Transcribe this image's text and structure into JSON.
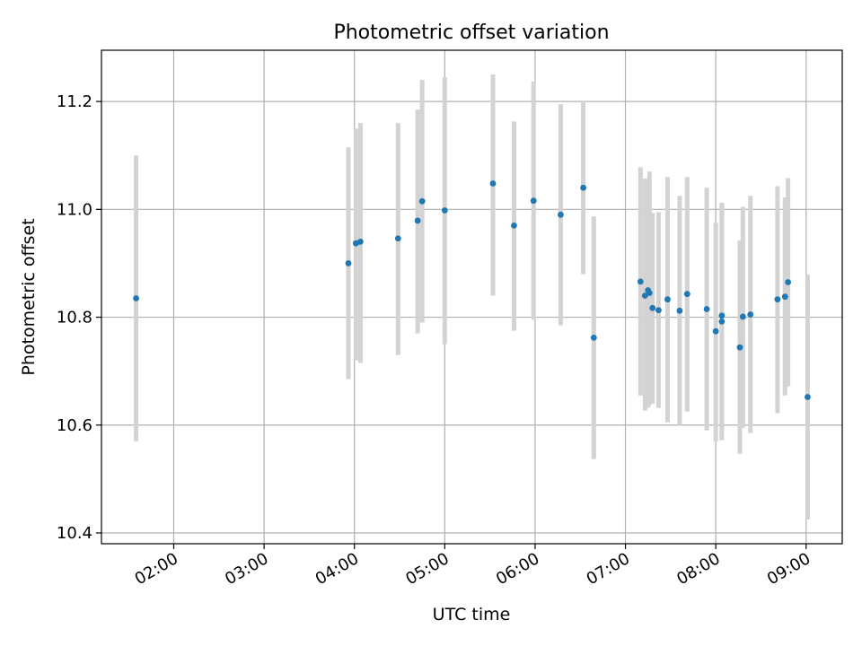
{
  "chart_data": {
    "type": "scatter",
    "title": "Photometric offset variation",
    "xlabel": "UTC time",
    "ylabel": "Photometric offset",
    "xlim": [
      "01:12",
      "09:24"
    ],
    "ylim": [
      10.38,
      11.295
    ],
    "x_ticks": [
      "02:00",
      "03:00",
      "04:00",
      "05:00",
      "06:00",
      "07:00",
      "08:00",
      "09:00"
    ],
    "y_ticks": [
      "10.4",
      "10.6",
      "10.8",
      "11.0",
      "11.2"
    ],
    "grid": true,
    "colors": {
      "marker": "#1f77b4",
      "error_bar": "#d3d3d3"
    },
    "series": [
      {
        "points": [
          {
            "x": "01:35",
            "y": 10.835,
            "ylo": 10.57,
            "yhi": 11.1
          },
          {
            "x": "03:56",
            "y": 10.9,
            "ylo": 10.685,
            "yhi": 11.115
          },
          {
            "x": "04:01",
            "y": 10.937,
            "ylo": 10.72,
            "yhi": 11.15
          },
          {
            "x": "04:04",
            "y": 10.94,
            "ylo": 10.715,
            "yhi": 11.16
          },
          {
            "x": "04:29",
            "y": 10.946,
            "ylo": 10.73,
            "yhi": 11.16
          },
          {
            "x": "04:42",
            "y": 10.979,
            "ylo": 10.77,
            "yhi": 11.185
          },
          {
            "x": "04:45",
            "y": 11.015,
            "ylo": 10.79,
            "yhi": 11.24
          },
          {
            "x": "05:00",
            "y": 10.998,
            "ylo": 10.75,
            "yhi": 11.245
          },
          {
            "x": "05:32",
            "y": 11.048,
            "ylo": 10.84,
            "yhi": 11.25
          },
          {
            "x": "05:46",
            "y": 10.97,
            "ylo": 10.775,
            "yhi": 11.163
          },
          {
            "x": "05:59",
            "y": 11.016,
            "ylo": 10.795,
            "yhi": 11.237
          },
          {
            "x": "06:17",
            "y": 10.99,
            "ylo": 10.785,
            "yhi": 11.195
          },
          {
            "x": "06:32",
            "y": 11.04,
            "ylo": 10.88,
            "yhi": 11.2
          },
          {
            "x": "06:39",
            "y": 10.762,
            "ylo": 10.537,
            "yhi": 10.987
          },
          {
            "x": "07:10",
            "y": 10.866,
            "ylo": 10.655,
            "yhi": 11.078
          },
          {
            "x": "07:13",
            "y": 10.84,
            "ylo": 10.627,
            "yhi": 11.057
          },
          {
            "x": "07:15",
            "y": 10.85,
            "ylo": 10.632,
            "yhi": 11.055
          },
          {
            "x": "07:16",
            "y": 10.845,
            "ylo": 10.637,
            "yhi": 11.07
          },
          {
            "x": "07:18",
            "y": 10.817,
            "ylo": 10.64,
            "yhi": 10.993
          },
          {
            "x": "07:22",
            "y": 10.813,
            "ylo": 10.632,
            "yhi": 10.995
          },
          {
            "x": "07:28",
            "y": 10.833,
            "ylo": 10.605,
            "yhi": 11.06
          },
          {
            "x": "07:36",
            "y": 10.812,
            "ylo": 10.6,
            "yhi": 11.025
          },
          {
            "x": "07:41",
            "y": 10.843,
            "ylo": 10.625,
            "yhi": 11.06
          },
          {
            "x": "07:54",
            "y": 10.815,
            "ylo": 10.59,
            "yhi": 11.04
          },
          {
            "x": "08:00",
            "y": 10.774,
            "ylo": 10.57,
            "yhi": 10.975
          },
          {
            "x": "08:04",
            "y": 10.803,
            "ylo": 10.595,
            "yhi": 11.012
          },
          {
            "x": "08:04",
            "y": 10.792,
            "ylo": 10.572,
            "yhi": 11.012
          },
          {
            "x": "08:16",
            "y": 10.744,
            "ylo": 10.547,
            "yhi": 10.942
          },
          {
            "x": "08:18",
            "y": 10.801,
            "ylo": 10.595,
            "yhi": 11.005
          },
          {
            "x": "08:23",
            "y": 10.805,
            "ylo": 10.585,
            "yhi": 11.025
          },
          {
            "x": "08:41",
            "y": 10.833,
            "ylo": 10.622,
            "yhi": 11.043
          },
          {
            "x": "08:46",
            "y": 10.838,
            "ylo": 10.655,
            "yhi": 11.022
          },
          {
            "x": "08:48",
            "y": 10.865,
            "ylo": 10.672,
            "yhi": 11.058
          },
          {
            "x": "09:01",
            "y": 10.652,
            "ylo": 10.425,
            "yhi": 10.879
          }
        ]
      }
    ]
  }
}
